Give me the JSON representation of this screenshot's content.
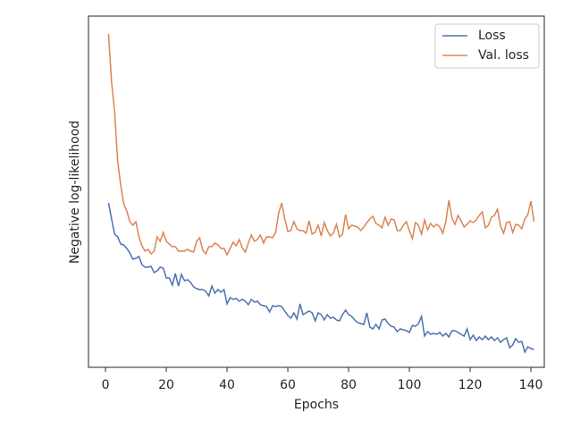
{
  "chart_data": {
    "type": "line",
    "xlabel": "Epochs",
    "ylabel": "Negative log-likelihood",
    "xlim": [
      -5.6,
      144.4
    ],
    "xticks": [
      0,
      20,
      40,
      60,
      80,
      100,
      120,
      140
    ],
    "ylim": [
      0,
      393
    ],
    "legend": "upper right",
    "x": [
      1,
      2,
      3,
      4,
      5,
      6,
      7,
      8,
      9,
      10,
      11,
      12,
      13,
      14,
      15,
      16,
      17,
      18,
      19,
      20,
      21,
      22,
      23,
      24,
      25,
      26,
      27,
      28,
      29,
      30,
      31,
      32,
      33,
      34,
      35,
      36,
      37,
      38,
      39,
      40,
      41,
      42,
      43,
      44,
      45,
      46,
      47,
      48,
      49,
      50,
      51,
      52,
      53,
      54,
      55,
      56,
      57,
      58,
      59,
      60,
      61,
      62,
      63,
      64,
      65,
      66,
      67,
      68,
      69,
      70,
      71,
      72,
      73,
      74,
      75,
      76,
      77,
      78,
      79,
      80,
      81,
      82,
      83,
      84,
      85,
      86,
      87,
      88,
      89,
      90,
      91,
      92,
      93,
      94,
      95,
      96,
      97,
      98,
      99,
      100,
      101,
      102,
      103,
      104,
      105,
      106,
      107,
      108,
      109,
      110,
      111,
      112,
      113,
      114,
      115,
      116,
      117,
      118,
      119,
      120,
      121,
      122,
      123,
      124,
      125,
      126,
      127,
      128,
      129,
      130,
      131,
      132,
      133,
      134,
      135,
      136,
      137,
      138,
      139,
      140,
      141
    ],
    "series": [
      {
        "name": "Loss",
        "color": "#4c72b0",
        "values": [
          184,
          166,
          149,
          146,
          138,
          137,
          133,
          128,
          121,
          122,
          124,
          115,
          112,
          112,
          113,
          106,
          108,
          112,
          111,
          100,
          100,
          92,
          105,
          91,
          104,
          97,
          98,
          95,
          90,
          88,
          87,
          87,
          85,
          80,
          91,
          83,
          87,
          84,
          87,
          71,
          78,
          76,
          77,
          74,
          76,
          74,
          70,
          76,
          73,
          74,
          70,
          69,
          68,
          62,
          69,
          68,
          69,
          68,
          63,
          58,
          55,
          61,
          54,
          71,
          59,
          61,
          63,
          61,
          52,
          61,
          59,
          53,
          59,
          55,
          56,
          53,
          52,
          59,
          64,
          59,
          57,
          53,
          50,
          49,
          48,
          61,
          45,
          43,
          48,
          43,
          53,
          54,
          49,
          46,
          45,
          40,
          43,
          42,
          41,
          39,
          47,
          46,
          49,
          57,
          35,
          40,
          37,
          38,
          37,
          39,
          35,
          38,
          34,
          41,
          41,
          39,
          37,
          35,
          43,
          31,
          36,
          30,
          34,
          31,
          35,
          31,
          34,
          30,
          33,
          28,
          31,
          33,
          22,
          25,
          32,
          28,
          29,
          17,
          23,
          21,
          20
        ]
      },
      {
        "name": "Val. loss",
        "color": "#dd8452",
        "values": [
          373,
          319,
          286,
          231,
          204,
          183,
          175,
          163,
          159,
          163,
          146,
          136,
          130,
          132,
          127,
          130,
          146,
          141,
          151,
          141,
          138,
          135,
          135,
          130,
          130,
          130,
          132,
          130,
          129,
          141,
          145,
          131,
          127,
          135,
          135,
          139,
          137,
          133,
          133,
          126,
          133,
          140,
          136,
          143,
          134,
          129,
          139,
          148,
          141,
          143,
          148,
          139,
          146,
          146,
          145,
          151,
          173,
          184,
          166,
          152,
          153,
          163,
          155,
          153,
          153,
          150,
          164,
          149,
          151,
          159,
          147,
          162,
          153,
          147,
          150,
          160,
          146,
          149,
          171,
          155,
          159,
          158,
          157,
          153,
          157,
          162,
          166,
          169,
          161,
          159,
          156,
          168,
          159,
          166,
          165,
          153,
          153,
          159,
          163,
          153,
          144,
          162,
          159,
          149,
          165,
          154,
          161,
          157,
          160,
          157,
          150,
          163,
          187,
          167,
          160,
          170,
          164,
          157,
          160,
          164,
          162,
          165,
          170,
          174,
          156,
          159,
          168,
          170,
          177,
          158,
          150,
          162,
          163,
          151,
          160,
          159,
          155,
          166,
          171,
          186,
          163
        ]
      }
    ]
  }
}
